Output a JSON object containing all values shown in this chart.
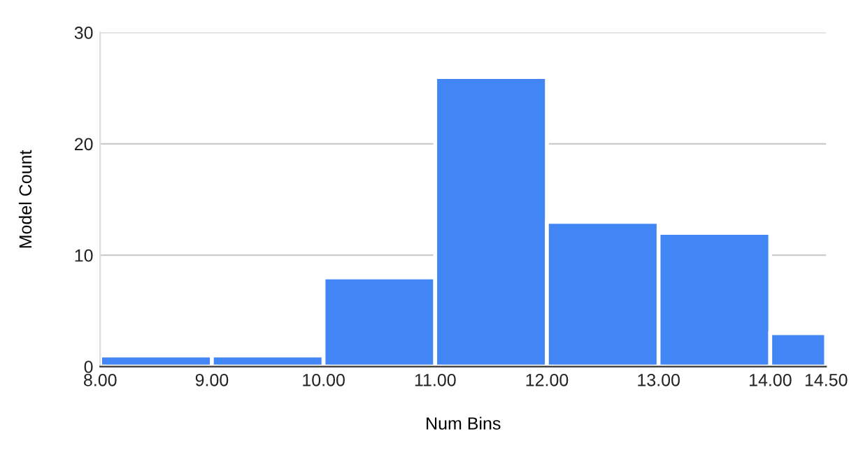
{
  "chart_data": {
    "type": "histogram",
    "xlabel": "Num Bins",
    "ylabel": "Model Count",
    "bins": [
      8,
      9,
      10,
      11,
      12,
      13,
      14,
      14.5
    ],
    "values": [
      1,
      1,
      8,
      26,
      13,
      12,
      3
    ],
    "color": "#4285f4",
    "xlim": [
      8,
      14.5
    ],
    "xticks": [
      {
        "value": 8,
        "label": "8.00"
      },
      {
        "value": 9,
        "label": "9.00"
      },
      {
        "value": 10,
        "label": "10.00"
      },
      {
        "value": 11,
        "label": "11.00"
      },
      {
        "value": 12,
        "label": "12.00"
      },
      {
        "value": 13,
        "label": "13.00"
      },
      {
        "value": 14,
        "label": "14.00"
      },
      {
        "value": 14.5,
        "label": "14.50"
      }
    ],
    "ylim": [
      0,
      30
    ],
    "yticks": [
      0,
      10,
      20,
      30
    ],
    "grid": "y"
  }
}
